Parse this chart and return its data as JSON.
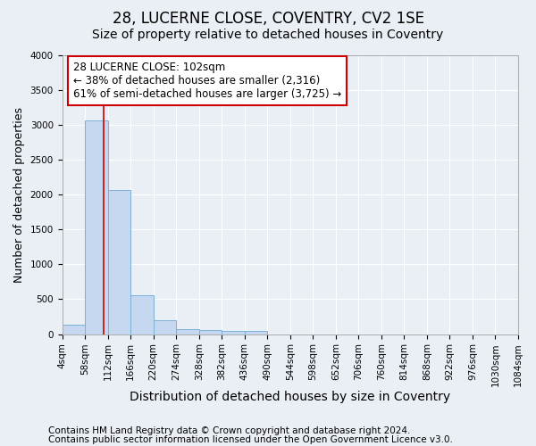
{
  "title1": "28, LUCERNE CLOSE, COVENTRY, CV2 1SE",
  "title2": "Size of property relative to detached houses in Coventry",
  "xlabel": "Distribution of detached houses by size in Coventry",
  "ylabel": "Number of detached properties",
  "footer1": "Contains HM Land Registry data © Crown copyright and database right 2024.",
  "footer2": "Contains public sector information licensed under the Open Government Licence v3.0.",
  "bar_edges": [
    4,
    58,
    112,
    166,
    220,
    274,
    328,
    382,
    436,
    490,
    544,
    598,
    652,
    706,
    760,
    814,
    868,
    922,
    976,
    1030,
    1084
  ],
  "bar_heights": [
    130,
    3060,
    2060,
    560,
    195,
    75,
    55,
    40,
    40,
    0,
    0,
    0,
    0,
    0,
    0,
    0,
    0,
    0,
    0,
    0
  ],
  "bar_color": "#c5d8f0",
  "bar_edge_color": "#7ab0d8",
  "vline_x": 102,
  "vline_color": "#cc0000",
  "annotation_line1": "28 LUCERNE CLOSE: 102sqm",
  "annotation_line2": "← 38% of detached houses are smaller (2,316)",
  "annotation_line3": "61% of semi-detached houses are larger (3,725) →",
  "annotation_box_color": "#cc0000",
  "annotation_bg": "#ffffff",
  "ylim": [
    0,
    4000
  ],
  "yticks": [
    0,
    500,
    1000,
    1500,
    2000,
    2500,
    3000,
    3500,
    4000
  ],
  "bg_color": "#eaeef5",
  "plot_bg": "#eaeef5",
  "grid_color": "#ffffff",
  "title1_fontsize": 12,
  "title2_fontsize": 10,
  "xlabel_fontsize": 10,
  "ylabel_fontsize": 9,
  "tick_fontsize": 7.5,
  "footer_fontsize": 7.5
}
